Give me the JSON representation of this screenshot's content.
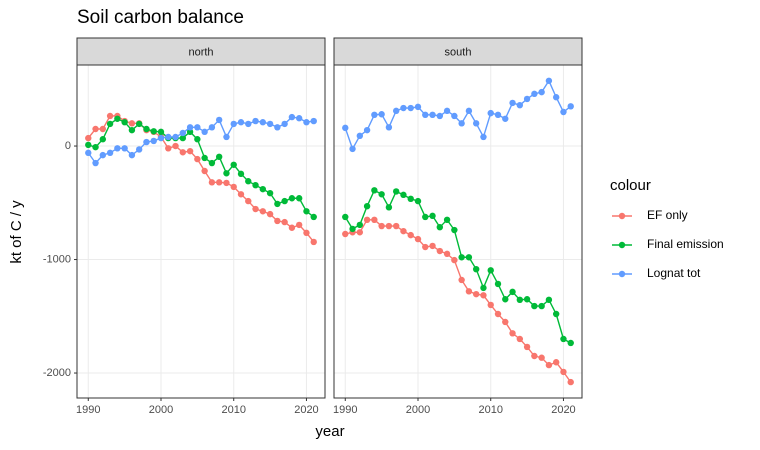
{
  "title": "Soil carbon balance",
  "x_label": "year",
  "y_label": "kt of C / y",
  "legend_title": "colour",
  "chart_data": [
    {
      "type": "line",
      "facet": "north",
      "x": [
        1990,
        1991,
        1992,
        1993,
        1994,
        1995,
        1996,
        1997,
        1998,
        1999,
        2000,
        2001,
        2002,
        2003,
        2004,
        2005,
        2006,
        2007,
        2008,
        2009,
        2010,
        2011,
        2012,
        2013,
        2014,
        2015,
        2016,
        2017,
        2018,
        2019,
        2020,
        2021
      ],
      "series": [
        {
          "name": "EF only",
          "color": "#F8766D",
          "values": [
            70,
            150,
            150,
            265,
            265,
            220,
            200,
            200,
            140,
            125,
            80,
            -20,
            0,
            -55,
            -45,
            -115,
            -220,
            -320,
            -320,
            -325,
            -360,
            -425,
            -485,
            -555,
            -575,
            -600,
            -660,
            -670,
            -720,
            -695,
            -765,
            -845
          ]
        },
        {
          "name": "Final emission",
          "color": "#00BA38",
          "values": [
            10,
            -10,
            60,
            195,
            240,
            210,
            140,
            195,
            150,
            130,
            125,
            70,
            70,
            70,
            125,
            60,
            -105,
            -150,
            -95,
            -240,
            -165,
            -245,
            -310,
            -345,
            -380,
            -415,
            -510,
            -485,
            -460,
            -460,
            -575,
            -625
          ]
        },
        {
          "name": "Lognat tot",
          "color": "#619CFF",
          "values": [
            -60,
            -150,
            -80,
            -60,
            -20,
            -20,
            -80,
            -30,
            35,
            45,
            70,
            80,
            80,
            115,
            165,
            165,
            125,
            165,
            230,
            80,
            195,
            210,
            195,
            220,
            210,
            195,
            165,
            195,
            255,
            245,
            210,
            220
          ]
        }
      ],
      "xlim": [
        1988.45,
        2022.55
      ],
      "ylim": [
        -2220,
        714
      ],
      "xticks": [
        1990,
        2000,
        2010,
        2020
      ],
      "yticks": [
        -2000,
        -1000,
        0
      ],
      "grid": true,
      "legend": "right"
    },
    {
      "type": "line",
      "facet": "south",
      "x": [
        1990,
        1991,
        1992,
        1993,
        1994,
        1995,
        1996,
        1997,
        1998,
        1999,
        2000,
        2001,
        2002,
        2003,
        2004,
        2005,
        2006,
        2007,
        2008,
        2009,
        2010,
        2011,
        2012,
        2013,
        2014,
        2015,
        2016,
        2017,
        2018,
        2019,
        2020,
        2021
      ],
      "series": [
        {
          "name": "EF only",
          "color": "#F8766D",
          "values": [
            -775,
            -760,
            -760,
            -650,
            -650,
            -705,
            -705,
            -705,
            -750,
            -785,
            -820,
            -890,
            -880,
            -925,
            -950,
            -1005,
            -1180,
            -1280,
            -1305,
            -1315,
            -1400,
            -1480,
            -1550,
            -1650,
            -1700,
            -1770,
            -1850,
            -1865,
            -1930,
            -1905,
            -1990,
            -2080
          ]
        },
        {
          "name": "Final emission",
          "color": "#00BA38",
          "values": [
            -625,
            -730,
            -695,
            -530,
            -390,
            -425,
            -540,
            -400,
            -430,
            -465,
            -485,
            -625,
            -615,
            -715,
            -650,
            -740,
            -980,
            -980,
            -1085,
            -1250,
            -1095,
            -1215,
            -1350,
            -1285,
            -1355,
            -1350,
            -1410,
            -1410,
            -1355,
            -1480,
            -1700,
            -1735
          ]
        },
        {
          "name": "Lognat tot",
          "color": "#619CFF",
          "values": [
            160,
            -25,
            90,
            140,
            275,
            280,
            165,
            310,
            335,
            335,
            345,
            275,
            275,
            265,
            310,
            265,
            200,
            310,
            200,
            80,
            290,
            275,
            240,
            380,
            360,
            415,
            460,
            475,
            575,
            430,
            300,
            350
          ]
        }
      ],
      "xlim": [
        1988.45,
        2022.55
      ],
      "ylim": [
        -2220,
        714
      ],
      "xticks": [
        1990,
        2000,
        2010,
        2020
      ],
      "yticks": [
        -2000,
        -1000,
        0
      ],
      "grid": true
    }
  ]
}
